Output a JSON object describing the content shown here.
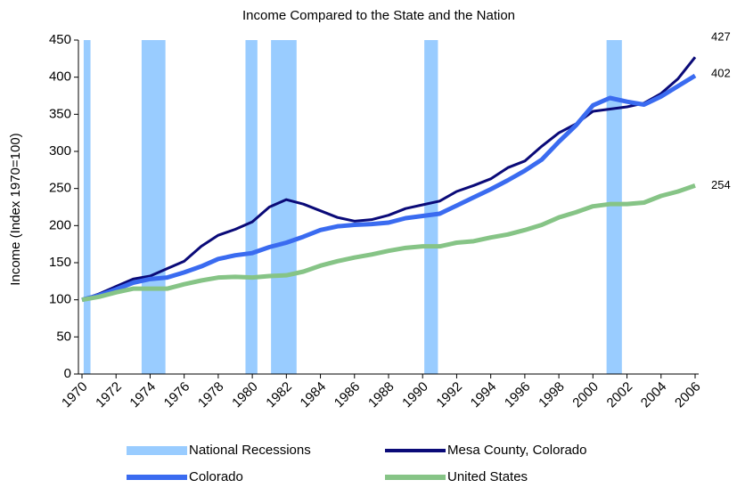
{
  "chart_data": {
    "type": "line",
    "title": "Income Compared to the State and the Nation",
    "y_label": "Income (Index 1970=100)",
    "x": [
      1970,
      1971,
      1972,
      1973,
      1974,
      1975,
      1976,
      1977,
      1978,
      1979,
      1980,
      1981,
      1982,
      1983,
      1984,
      1985,
      1986,
      1987,
      1988,
      1989,
      1990,
      1991,
      1992,
      1993,
      1994,
      1995,
      1996,
      1997,
      1998,
      1999,
      2000,
      2001,
      2002,
      2003,
      2004,
      2005,
      2006
    ],
    "recessions": {
      "name": "National Recessions",
      "color": "#99ccff",
      "periods": [
        [
          1970.1,
          1970.5
        ],
        [
          1973.5,
          1974.9
        ],
        [
          1979.6,
          1980.3
        ],
        [
          1981.1,
          1982.6
        ],
        [
          1990.1,
          1990.9
        ],
        [
          2000.8,
          2001.7
        ]
      ]
    },
    "series": [
      {
        "name": "Mesa County, Colorado",
        "color": "#0a0a78",
        "values": [
          100,
          108,
          118,
          128,
          132,
          142,
          152,
          172,
          187,
          195,
          205,
          225,
          235,
          229,
          220,
          211,
          206,
          208,
          214,
          223,
          228,
          233,
          246,
          254,
          263,
          278,
          287,
          307,
          325,
          337,
          354,
          357,
          360,
          365,
          378,
          398,
          427
        ],
        "end_label": "427"
      },
      {
        "name": "Colorado",
        "color": "#3a6bf0",
        "values": [
          100,
          106,
          114,
          123,
          128,
          130,
          137,
          145,
          155,
          160,
          163,
          171,
          177,
          185,
          194,
          199,
          201,
          202,
          204,
          210,
          213,
          216,
          227,
          238,
          249,
          261,
          274,
          289,
          313,
          335,
          362,
          372,
          367,
          363,
          374,
          388,
          402
        ],
        "end_label": "402"
      },
      {
        "name": "United States",
        "color": "#86c486",
        "values": [
          100,
          104,
          110,
          115,
          115,
          115,
          121,
          126,
          130,
          131,
          130,
          132,
          133,
          138,
          146,
          152,
          157,
          161,
          166,
          170,
          172,
          172,
          177,
          179,
          184,
          188,
          194,
          201,
          211,
          218,
          226,
          229,
          229,
          231,
          240,
          246,
          254
        ],
        "end_label": "254"
      }
    ],
    "xlim": [
      1970,
      2006
    ],
    "xticks": [
      1970,
      1972,
      1974,
      1976,
      1978,
      1980,
      1982,
      1984,
      1986,
      1988,
      1990,
      1992,
      1994,
      1996,
      1998,
      2000,
      2002,
      2004,
      2006
    ],
    "ylim": [
      0,
      450
    ],
    "yticks": [
      0,
      50,
      100,
      150,
      200,
      250,
      300,
      350,
      400,
      450
    ],
    "legend": "bottom"
  }
}
